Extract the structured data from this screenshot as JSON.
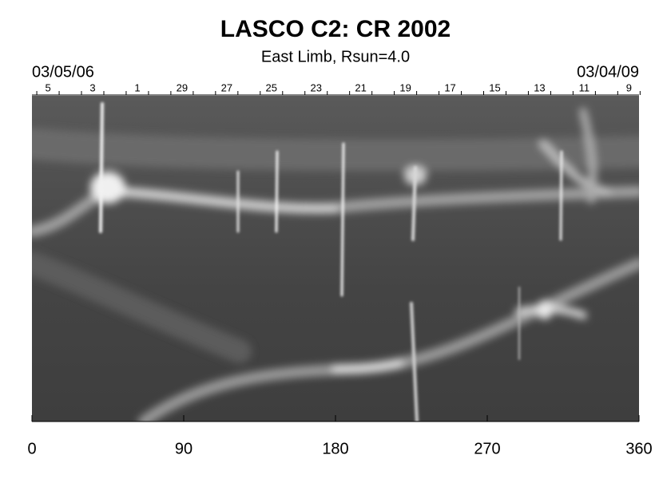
{
  "chart_data": {
    "type": "synoptic-map",
    "title": "LASCO C2: CR 2002",
    "subtitle": "East Limb, Rsun=4.0",
    "start_date": "03/05/06",
    "end_date": "03/04/09",
    "xlim": [
      0,
      360
    ],
    "xticks": [
      0,
      90,
      180,
      270,
      360
    ],
    "top_ticks": [
      {
        "value": 9.5,
        "label": "5"
      },
      {
        "value": 36,
        "label": "3"
      },
      {
        "value": 62.5,
        "label": "1"
      },
      {
        "value": 89,
        "label": "29"
      },
      {
        "value": 115.5,
        "label": "27"
      },
      {
        "value": 142,
        "label": "25"
      },
      {
        "value": 168.5,
        "label": "23"
      },
      {
        "value": 195,
        "label": "21"
      },
      {
        "value": 221.5,
        "label": "19"
      },
      {
        "value": 248,
        "label": "17"
      },
      {
        "value": 274.5,
        "label": "15"
      },
      {
        "value": 301,
        "label": "13"
      },
      {
        "value": 327.5,
        "label": "11"
      },
      {
        "value": 354,
        "label": "9"
      }
    ]
  }
}
